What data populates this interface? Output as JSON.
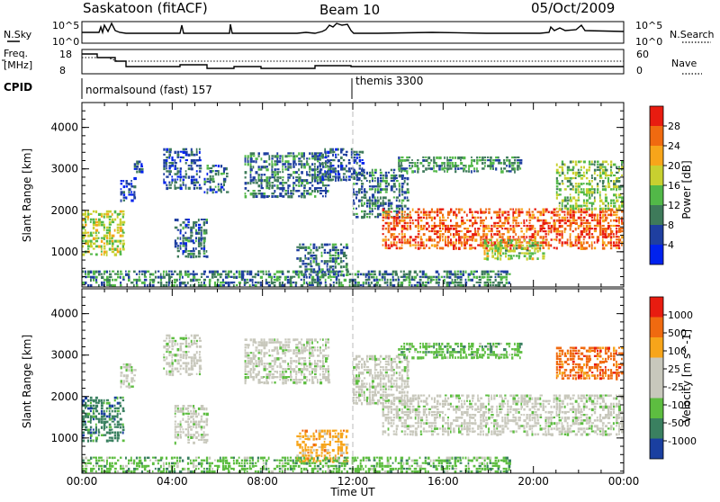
{
  "header": {
    "station": "Saskatoon (fitACF)",
    "beam": "Beam 10",
    "date": "05/Oct/2009"
  },
  "top_panels": {
    "nsky": {
      "left_label": "N.Sky",
      "right_label": "N.Search",
      "left_ticks": [
        "10^5",
        "10^0"
      ],
      "right_ticks": [
        "10^5",
        "10^0"
      ]
    },
    "freq": {
      "left_label_1": "Freq.",
      "left_label_2": "[MHz]",
      "right_label": "Nave",
      "left_ticks": [
        "18",
        "8"
      ],
      "right_ticks": [
        "60",
        "0"
      ]
    },
    "cpid": {
      "label": "CPID",
      "segments": [
        {
          "name": "normalsound (fast) 157",
          "start_hour": 0
        },
        {
          "name": "themis 3300",
          "start_hour": 12
        }
      ]
    }
  },
  "colors": {
    "power_scale": [
      "#0022ee",
      "#1f3fa0",
      "#3e7a5a",
      "#52b848",
      "#c8d030",
      "#f7a51a",
      "#f06a10",
      "#e81c10"
    ],
    "velocity_scale": [
      "#1a3fa0",
      "#3a8060",
      "#5dbd40",
      "#c8c8bc",
      "#c8c8bc",
      "#f7a51a",
      "#f06a10",
      "#e81c10"
    ]
  },
  "chart_data": [
    {
      "type": "heatmap",
      "title": "",
      "xlabel": "Time UT",
      "ylabel": "Slant Range [km]",
      "xlim": [
        0,
        24
      ],
      "ylim": [
        150,
        4600
      ],
      "x_ticks": [
        "00:00",
        "04:00",
        "08:00",
        "12:00",
        "16:00",
        "20:00",
        "00:00"
      ],
      "y_ticks": [
        "1000",
        "2000",
        "3000",
        "4000"
      ],
      "colorbar": {
        "label": "Power [dB]",
        "ticks": [
          "4",
          "8",
          "12",
          "16",
          "20",
          "24",
          "28"
        ],
        "range": [
          0,
          32
        ]
      },
      "regions": [
        {
          "t0": 0.0,
          "t1": 1.9,
          "r0": 900,
          "r1": 2000,
          "level": 17
        },
        {
          "t0": 1.7,
          "t1": 2.4,
          "r0": 2200,
          "r1": 2800,
          "level": 6
        },
        {
          "t0": 2.3,
          "t1": 2.7,
          "r0": 2900,
          "r1": 3200,
          "level": 5
        },
        {
          "t0": 3.6,
          "t1": 5.3,
          "r0": 2500,
          "r1": 3500,
          "level": 7
        },
        {
          "t0": 4.1,
          "t1": 5.6,
          "r0": 850,
          "r1": 1800,
          "level": 8
        },
        {
          "t0": 5.4,
          "t1": 6.5,
          "r0": 2400,
          "r1": 3100,
          "level": 8
        },
        {
          "t0": 7.2,
          "t1": 11.0,
          "r0": 2300,
          "r1": 3400,
          "level": 9
        },
        {
          "t0": 9.5,
          "t1": 11.8,
          "r0": 400,
          "r1": 1200,
          "level": 9
        },
        {
          "t0": 10.5,
          "t1": 12.5,
          "r0": 2700,
          "r1": 3500,
          "level": 7
        },
        {
          "t0": 12.0,
          "t1": 14.5,
          "r0": 1800,
          "r1": 3000,
          "level": 9
        },
        {
          "t0": 13.3,
          "t1": 24.0,
          "r0": 1050,
          "r1": 2050,
          "level": 27
        },
        {
          "t0": 14.0,
          "t1": 19.5,
          "r0": 2900,
          "r1": 3300,
          "level": 11
        },
        {
          "t0": 17.8,
          "t1": 20.5,
          "r0": 800,
          "r1": 1300,
          "level": 16
        },
        {
          "t0": 21.0,
          "t1": 24.0,
          "r0": 2000,
          "r1": 3200,
          "level": 15
        },
        {
          "t0": 0.0,
          "t1": 19.0,
          "r0": 150,
          "r1": 550,
          "level": 10
        }
      ]
    },
    {
      "type": "heatmap",
      "title": "",
      "xlabel": "Time UT",
      "ylabel": "Slant Range [km]",
      "xlim": [
        0,
        24
      ],
      "ylim": [
        150,
        4600
      ],
      "x_ticks": [
        "00:00",
        "04:00",
        "08:00",
        "12:00",
        "16:00",
        "20:00",
        "00:00"
      ],
      "y_ticks": [
        "1000",
        "2000",
        "3000",
        "4000"
      ],
      "colorbar": {
        "label": "Velocity [m s^-1]",
        "ticks": [
          "1000",
          "500",
          "100",
          "25",
          "-25",
          "-100",
          "-500",
          "-1000"
        ]
      },
      "regions": [
        {
          "t0": 0.0,
          "t1": 1.9,
          "r0": 900,
          "r1": 2000,
          "level": 1
        },
        {
          "t0": 1.7,
          "t1": 2.4,
          "r0": 2200,
          "r1": 2800,
          "level": 3
        },
        {
          "t0": 3.6,
          "t1": 5.3,
          "r0": 2500,
          "r1": 3500,
          "level": 3
        },
        {
          "t0": 4.1,
          "t1": 5.6,
          "r0": 850,
          "r1": 1800,
          "level": 3
        },
        {
          "t0": 7.2,
          "t1": 11.0,
          "r0": 2300,
          "r1": 3400,
          "level": 3
        },
        {
          "t0": 9.5,
          "t1": 11.8,
          "r0": 400,
          "r1": 1200,
          "level": 5
        },
        {
          "t0": 12.0,
          "t1": 14.5,
          "r0": 1800,
          "r1": 3000,
          "level": 3
        },
        {
          "t0": 13.3,
          "t1": 24.0,
          "r0": 1050,
          "r1": 2050,
          "level": 3
        },
        {
          "t0": 14.0,
          "t1": 19.5,
          "r0": 2900,
          "r1": 3300,
          "level": 2
        },
        {
          "t0": 21.0,
          "t1": 24.0,
          "r0": 2400,
          "r1": 3200,
          "level": 6
        },
        {
          "t0": 0.0,
          "t1": 19.0,
          "r0": 150,
          "r1": 550,
          "level": 2
        }
      ]
    }
  ]
}
